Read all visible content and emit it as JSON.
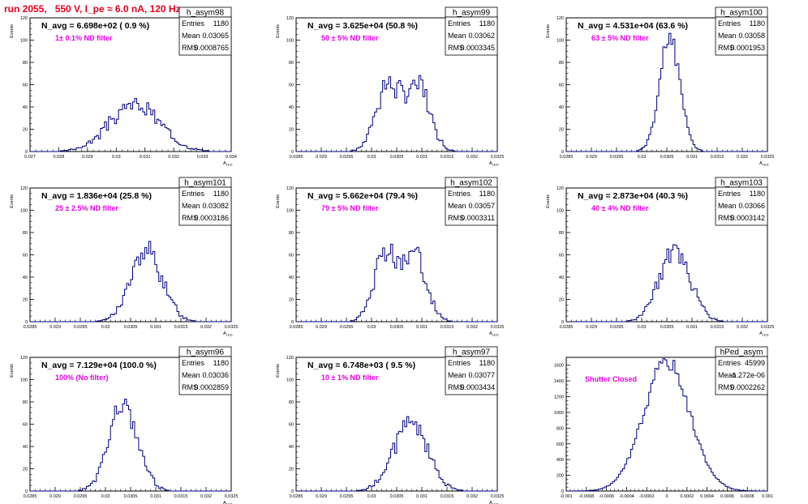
{
  "page_title": "run 2055,   550 V, I_pe ≈ 6.0 nA, 120 Hz",
  "chart_data": [
    {
      "type": "histogram",
      "name": "h_asym98",
      "navg": "N_avg = 6.698e+02 ( 0.9 %)",
      "filter": "1± 0.1% ND filter",
      "stats": [
        [
          "Entries",
          "1180"
        ],
        [
          "Mean",
          "0.03065"
        ],
        [
          "RMS",
          "0.0008765"
        ]
      ],
      "ylabel": "Events",
      "xlabel": "A_LED",
      "xlim": [
        0.027,
        0.034
      ],
      "ylim": [
        0,
        120
      ],
      "yticks": [
        0,
        20,
        40,
        60,
        80,
        100,
        120
      ],
      "xticks": [
        "0.027",
        "0.028",
        "0.029",
        "0.03",
        "0.031",
        "0.032",
        "0.033",
        "0.034"
      ],
      "mu": 0.03065,
      "sigma": 0.00088,
      "peak": 42,
      "bins": 100,
      "shape": "noisy",
      "seed": 3
    },
    {
      "type": "histogram",
      "name": "h_asym99",
      "navg": "N_avg = 3.625e+04 (50.8 %)",
      "filter": "50 ± 5% ND filter",
      "stats": [
        [
          "Entries",
          "1180"
        ],
        [
          "Mean",
          "0.03062"
        ],
        [
          "RMS",
          "0.0003345"
        ]
      ],
      "ylabel": "Events",
      "xlabel": "A_LED",
      "xlim": [
        0.0285,
        0.0325
      ],
      "ylim": [
        0,
        120
      ],
      "yticks": [
        0,
        20,
        40,
        60,
        80,
        100,
        120
      ],
      "xticks": [
        "0.0285",
        "0.029",
        "0.0295",
        "0.03",
        "0.0305",
        "0.031",
        "0.0315",
        "0.032",
        "0.0325"
      ],
      "mu": 0.03062,
      "sigma": 0.00034,
      "peak": 62,
      "bins": 100,
      "shape": "bimodal",
      "seed": 7
    },
    {
      "type": "histogram",
      "name": "h_asym100",
      "navg": "N_avg = 4.531e+04 (63.6 %)",
      "filter": "63 ± 5% ND filter",
      "stats": [
        [
          "Entries",
          "1180"
        ],
        [
          "Mean",
          "0.03058"
        ],
        [
          "RMS",
          "0.0001953"
        ]
      ],
      "ylabel": "Events",
      "xlabel": "A_LED",
      "xlim": [
        0.0285,
        0.0325
      ],
      "ylim": [
        0,
        120
      ],
      "yticks": [
        0,
        20,
        40,
        60,
        80,
        100,
        120
      ],
      "xticks": [
        "0.0285",
        "0.029",
        "0.0295",
        "0.03",
        "0.0305",
        "0.031",
        "0.0315",
        "0.032",
        "0.0325"
      ],
      "mu": 0.03056,
      "sigma": 0.0002,
      "peak": 104,
      "bins": 100,
      "shape": "gauss",
      "seed": 11
    },
    {
      "type": "histogram",
      "name": "h_asym101",
      "navg": "N_avg = 1.836e+04 (25.8 %)",
      "filter": "25 ± 2.5% ND filter",
      "stats": [
        [
          "Entries",
          "1180"
        ],
        [
          "Mean",
          "0.03082"
        ],
        [
          "RMS",
          "0.0003186"
        ]
      ],
      "ylabel": "Events",
      "xlabel": "A_LED",
      "xlim": [
        0.0285,
        0.0325
      ],
      "ylim": [
        0,
        120
      ],
      "yticks": [
        0,
        20,
        40,
        60,
        80,
        100,
        120
      ],
      "xticks": [
        "0.0285",
        "0.029",
        "0.0295",
        "0.03",
        "0.0305",
        "0.031",
        "0.0315",
        "0.032",
        "0.0325"
      ],
      "mu": 0.03082,
      "sigma": 0.00032,
      "peak": 62,
      "bins": 100,
      "shape": "noisy",
      "seed": 13
    },
    {
      "type": "histogram",
      "name": "h_asym102",
      "navg": "N_avg = 5.662e+04 (79.4 %)",
      "filter": "79 ± 5% ND filter",
      "stats": [
        [
          "Entries",
          "1180"
        ],
        [
          "Mean",
          "0.03057"
        ],
        [
          "RMS",
          "0.0003311"
        ]
      ],
      "ylabel": "Events",
      "xlabel": "A_LED",
      "xlim": [
        0.0285,
        0.0325
      ],
      "ylim": [
        0,
        120
      ],
      "yticks": [
        0,
        20,
        40,
        60,
        80,
        100,
        120
      ],
      "xticks": [
        "0.0285",
        "0.029",
        "0.0295",
        "0.03",
        "0.0305",
        "0.031",
        "0.0315",
        "0.032",
        "0.0325"
      ],
      "mu": 0.03057,
      "sigma": 0.00033,
      "peak": 62,
      "bins": 100,
      "shape": "bimodal",
      "seed": 17
    },
    {
      "type": "histogram",
      "name": "h_asym103",
      "navg": "N_avg = 2.873e+04 (40.3 %)",
      "filter": "40 ± 4% ND filter",
      "stats": [
        [
          "Entries",
          "1180"
        ],
        [
          "Mean",
          "0.03066"
        ],
        [
          "RMS",
          "0.0003142"
        ]
      ],
      "ylabel": "Events",
      "xlabel": "A_LED",
      "xlim": [
        0.0285,
        0.0325
      ],
      "ylim": [
        0,
        120
      ],
      "yticks": [
        0,
        20,
        40,
        60,
        80,
        100,
        120
      ],
      "xticks": [
        "0.0285",
        "0.029",
        "0.0295",
        "0.03",
        "0.0305",
        "0.031",
        "0.0315",
        "0.032",
        "0.0325"
      ],
      "mu": 0.03066,
      "sigma": 0.00031,
      "peak": 64,
      "bins": 100,
      "shape": "noisy",
      "seed": 19
    },
    {
      "type": "histogram",
      "name": "h_asym96",
      "navg": "N_avg = 7.129e+04 (100.0 %)",
      "filter": "100% (No filter)",
      "stats": [
        [
          "Entries",
          "1180"
        ],
        [
          "Mean",
          "0.03036"
        ],
        [
          "RMS",
          "0.0002859"
        ]
      ],
      "ylabel": "Events",
      "xlabel": "A_LED",
      "xlim": [
        0.0285,
        0.0325
      ],
      "ylim": [
        0,
        120
      ],
      "yticks": [
        0,
        20,
        40,
        60,
        80,
        100,
        120
      ],
      "xticks": [
        "0.0285",
        "0.029",
        "0.0295",
        "0.03",
        "0.0305",
        "0.031",
        "0.0315",
        "0.032",
        "0.0325"
      ],
      "mu": 0.03036,
      "sigma": 0.00029,
      "peak": 76,
      "bins": 100,
      "shape": "noisy",
      "seed": 23
    },
    {
      "type": "histogram",
      "name": "h_asym97",
      "navg": "N_avg = 6.748e+03 ( 9.5 %)",
      "filter": "10 ± 1% ND filter",
      "stats": [
        [
          "Entries",
          "1180"
        ],
        [
          "Mean",
          "0.03077"
        ],
        [
          "RMS",
          "0.0003434"
        ]
      ],
      "ylabel": "Events",
      "xlabel": "A_LED",
      "xlim": [
        0.0285,
        0.0325
      ],
      "ylim": [
        0,
        120
      ],
      "yticks": [
        0,
        20,
        40,
        60,
        80,
        100,
        120
      ],
      "xticks": [
        "0.0285",
        "0.029",
        "0.0295",
        "0.03",
        "0.0305",
        "0.031",
        "0.0315",
        "0.032",
        "0.0325"
      ],
      "mu": 0.03077,
      "sigma": 0.00034,
      "peak": 60,
      "bins": 100,
      "shape": "noisy",
      "seed": 29
    },
    {
      "type": "histogram",
      "name": "hPed_asym",
      "navg": "",
      "filter": "Shutter Closed",
      "stats": [
        [
          "Entries",
          "45999"
        ],
        [
          "Mean",
          "-1.272e-06"
        ],
        [
          "RMS",
          "0.0002262"
        ]
      ],
      "ylabel": "",
      "xlabel": "",
      "xlim": [
        -0.001,
        0.001
      ],
      "ylim": [
        0,
        1700
      ],
      "yticks": [
        0,
        200,
        400,
        600,
        800,
        1000,
        1200,
        1400,
        1600
      ],
      "xticks": [
        "-0.001",
        "-0.0008",
        "-0.0006",
        "-0.0004",
        "-0.0002",
        "0",
        "0.0002",
        "0.0004",
        "0.0006",
        "0.0008",
        "0.001"
      ],
      "mu": 0.0,
      "sigma": 0.00023,
      "peak": 1640,
      "bins": 100,
      "shape": "gauss",
      "seed": 31
    }
  ]
}
